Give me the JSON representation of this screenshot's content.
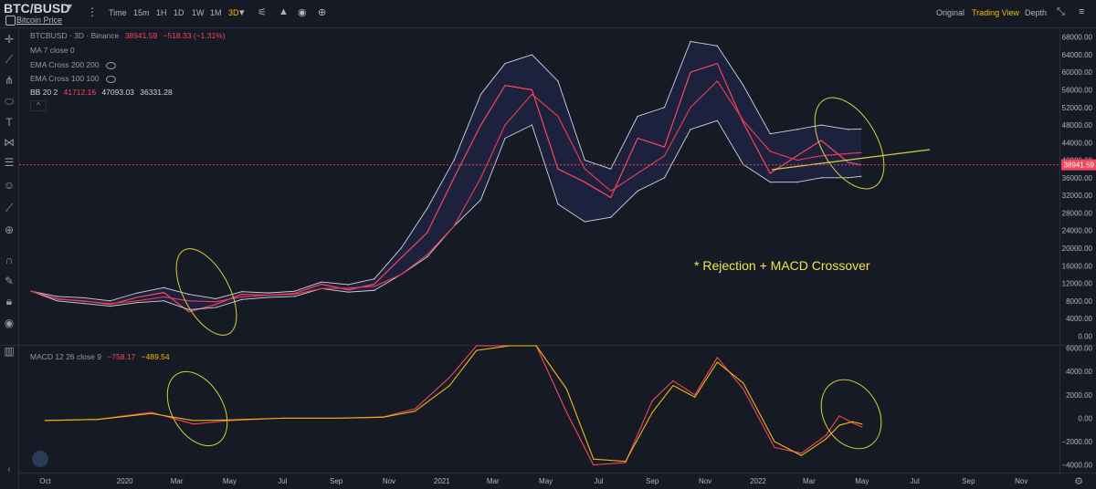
{
  "header": {
    "symbol": "BTC/BUSD",
    "subtitle": "Bitcoin Price",
    "timeframes": [
      "Time",
      "15m",
      "1H",
      "1D",
      "1W",
      "1M",
      "3D"
    ],
    "active_timeframe": "3D",
    "views": [
      "Original",
      "Trading View",
      "Depth"
    ],
    "active_view": "Trading View"
  },
  "legend": {
    "title": "BTCBUSD · 3D · Binance",
    "price": "38941.59",
    "change": "−518.33 (−1.31%)",
    "ma": "MA 7 close 0",
    "ema1": "EMA Cross 200 200",
    "ema2": "EMA Cross 100 100",
    "bb_label": "BB 20 2",
    "bb_upper": "41712.16",
    "bb_mid": "47093.03",
    "bb_lower": "36331.28",
    "macd_label": "MACD 12 26 close 9",
    "macd_v1": "−758.17",
    "macd_v2": "−489.54",
    "collapse": "^"
  },
  "annotation": "* Rejection + MACD Crossover",
  "price_tag": "38941.59",
  "colors": {
    "background": "#161a25",
    "price_line": "#f6465d",
    "bb_band": "#d1d4dc",
    "bb_fill": "#1d2440",
    "macd_line": "#f0b90b",
    "signal_line": "#f6465d",
    "annotation": "#f0e64a",
    "accent": "#f0b90b"
  },
  "chart_data": [
    {
      "type": "line",
      "title": "BTCBUSD · 3D · Binance",
      "ylim": [
        -2000,
        70000
      ],
      "price_axis_ticks": [
        "68000.00",
        "64000.00",
        "60000.00",
        "56000.00",
        "52000.00",
        "48000.00",
        "44000.00",
        "40000.00",
        "36000.00",
        "32000.00",
        "28000.00",
        "24000.00",
        "20000.00",
        "16000.00",
        "12000.00",
        "8000.00",
        "4000.00",
        "0.00"
      ],
      "x_ticks": [
        "Oct",
        "2020",
        "Mar",
        "May",
        "Jul",
        "Sep",
        "Nov",
        "2021",
        "Mar",
        "May",
        "Jul",
        "Sep",
        "Nov",
        "2022",
        "Mar",
        "May",
        "Jul",
        "Sep",
        "Nov"
      ],
      "x": [
        "2019-09-15",
        "2019-10-15",
        "2019-11-15",
        "2019-12-15",
        "2020-01-15",
        "2020-02-15",
        "2020-03-15",
        "2020-04-15",
        "2020-05-15",
        "2020-06-15",
        "2020-07-15",
        "2020-08-15",
        "2020-09-15",
        "2020-10-15",
        "2020-11-15",
        "2020-12-15",
        "2021-01-15",
        "2021-02-15",
        "2021-03-15",
        "2021-04-15",
        "2021-05-15",
        "2021-06-15",
        "2021-07-15",
        "2021-08-15",
        "2021-09-15",
        "2021-10-15",
        "2021-11-15",
        "2021-12-15",
        "2022-01-15",
        "2022-02-15",
        "2022-03-15",
        "2022-04-15",
        "2022-04-30"
      ],
      "series": [
        {
          "name": "",
          "values": [
            10200,
            8400,
            8000,
            7200,
            8800,
            9900,
            5500,
            7200,
            9500,
            9300,
            9700,
            11800,
            10500,
            11800,
            17800,
            23500,
            36000,
            48000,
            57000,
            56000,
            38000,
            35000,
            31500,
            45000,
            43000,
            60000,
            62000,
            48500,
            37000,
            41000,
            44500,
            39500,
            38941.59
          ]
        },
        {
          "name": "BB 20 2",
          "values": [
            10200,
            9000,
            8700,
            8000,
            9800,
            11000,
            9500,
            8500,
            10100,
            9800,
            10200,
            12300,
            11700,
            13000,
            20000,
            29000,
            40000,
            55000,
            62000,
            64000,
            58000,
            40000,
            38000,
            50000,
            52000,
            67000,
            66000,
            57000,
            46000,
            47000,
            48000,
            47000,
            47093.03
          ]
        },
        {
          "name": "",
          "values": [
            10200,
            8000,
            7400,
            6800,
            7600,
            8000,
            6000,
            6500,
            8300,
            8800,
            9000,
            10800,
            10000,
            10400,
            14000,
            18000,
            25000,
            31000,
            45000,
            48000,
            30000,
            26000,
            27000,
            33000,
            36000,
            47000,
            49000,
            39000,
            35000,
            35000,
            36000,
            36000,
            36331.28
          ]
        },
        {
          "name": "",
          "values": [
            10200,
            8500,
            7900,
            7400,
            8000,
            8900,
            8000,
            7800,
            8900,
            9300,
            9500,
            10800,
            10900,
            11300,
            14000,
            18500,
            25000,
            36000,
            48000,
            55000,
            50000,
            38000,
            33000,
            37000,
            41000,
            52000,
            58000,
            49000,
            42000,
            40000,
            41000,
            41500,
            41712.16
          ]
        }
      ]
    },
    {
      "type": "line",
      "title": "MACD 12 26 close 9",
      "ylim": [
        -4500,
        6200
      ],
      "axis_ticks": [
        "6000.00",
        "4000.00",
        "2000.00",
        "0.00",
        "−2000.00",
        "−4000.00"
      ],
      "x": [
        "2019-10-01",
        "2019-12-01",
        "2020-02-01",
        "2020-03-20",
        "2020-05-01",
        "2020-07-01",
        "2020-09-01",
        "2020-10-25",
        "2020-12-01",
        "2021-01-10",
        "2021-02-10",
        "2021-03-20",
        "2021-04-20",
        "2021-05-25",
        "2021-06-25",
        "2021-08-01",
        "2021-09-01",
        "2021-09-25",
        "2021-10-20",
        "2021-11-15",
        "2021-12-15",
        "2022-01-20",
        "2022-02-20",
        "2022-03-20",
        "2022-04-05",
        "2022-04-20",
        "2022-05-01"
      ],
      "series": [
        {
          "name": "",
          "values": [
            -200,
            -100,
            500,
            -500,
            -200,
            0,
            0,
            100,
            800,
            3500,
            6500,
            6500,
            6200,
            500,
            -4000,
            -3800,
            1500,
            3200,
            2000,
            5200,
            2500,
            -2500,
            -3000,
            -1500,
            200,
            -400,
            -750
          ]
        },
        {
          "name": "",
          "values": [
            -200,
            -100,
            400,
            -200,
            -150,
            0,
            0,
            80,
            600,
            2800,
            5800,
            6200,
            6400,
            2500,
            -3500,
            -3700,
            500,
            2800,
            1800,
            4800,
            3000,
            -2000,
            -3200,
            -1800,
            -600,
            -300,
            -500
          ]
        }
      ]
    }
  ]
}
